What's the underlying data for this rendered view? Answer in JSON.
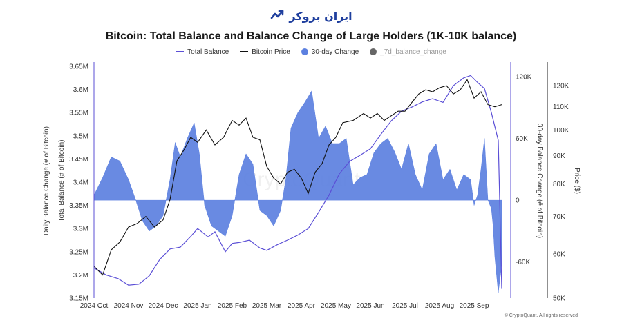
{
  "brand": {
    "name": "ایران بروکر",
    "icon": "trend-chart-icon",
    "color": "#1f3f9e"
  },
  "copyright": "© CryptoQuant. All rights reserved",
  "chart_data": {
    "type": "line",
    "title": "Bitcoin: Total Balance and Balance Change of Large Holders (1K-10K balance)",
    "watermark": "CryptoQuant",
    "legend": [
      {
        "name": "Total Balance",
        "kind": "line",
        "color": "#5b4fd6",
        "hidden": false
      },
      {
        "name": "Bitcoin Price",
        "kind": "line",
        "color": "#111111",
        "hidden": false
      },
      {
        "name": "30-day Change",
        "kind": "dot",
        "color": "#5c80e0",
        "hidden": false
      },
      {
        "name": "_7d_balance_change",
        "kind": "dot",
        "color": "#666666",
        "hidden": true
      }
    ],
    "x_ticks": [
      "2024 Oct",
      "2024 Nov",
      "2024 Dec",
      "2025 Jan",
      "2025 Feb",
      "2025 Mar",
      "2025 Apr",
      "2025 May",
      "2025 Jun",
      "2025 Jul",
      "2025 Aug",
      "2025 Sep"
    ],
    "axes": {
      "balance": {
        "title": "Total Balance (# of Bitcoin)",
        "title2": "Daily Balance Change (# of Bitcoin)",
        "range": [
          3150000,
          3650000
        ],
        "ticks": [
          {
            "v": 3650000,
            "label": "3.65M"
          },
          {
            "v": 3600000,
            "label": "3.6M"
          },
          {
            "v": 3550000,
            "label": "3.55M"
          },
          {
            "v": 3500000,
            "label": "3.5M"
          },
          {
            "v": 3450000,
            "label": "3.45M"
          },
          {
            "v": 3400000,
            "label": "3.4M"
          },
          {
            "v": 3350000,
            "label": "3.35M"
          },
          {
            "v": 3300000,
            "label": "3.3M"
          },
          {
            "v": 3250000,
            "label": "3.25M"
          },
          {
            "v": 3200000,
            "label": "3.2M"
          },
          {
            "v": 3150000,
            "label": "3.15M"
          }
        ]
      },
      "change": {
        "title": "30-day Balance Change (# of Bitcoin)",
        "range": [
          -95000,
          130000
        ],
        "ticks": [
          {
            "v": 120000,
            "label": "120K"
          },
          {
            "v": 60000,
            "label": "60K"
          },
          {
            "v": 0,
            "label": "0"
          },
          {
            "v": -60000,
            "label": "-60K"
          }
        ]
      },
      "price": {
        "title": "Price ($)",
        "scale": "log",
        "range": [
          50000,
          130000
        ],
        "ticks": [
          {
            "v": 120000,
            "label": "120K"
          },
          {
            "v": 110000,
            "label": "110K"
          },
          {
            "v": 100000,
            "label": "100K"
          },
          {
            "v": 90000,
            "label": "90K"
          },
          {
            "v": 80000,
            "label": "80K"
          },
          {
            "v": 70000,
            "label": "70K"
          },
          {
            "v": 60000,
            "label": "60K"
          },
          {
            "v": 50000,
            "label": "50K"
          }
        ]
      }
    },
    "x_domain": [
      0,
      12
    ],
    "series": [
      {
        "name": "Total Balance",
        "axis": "balance",
        "x": [
          0,
          0.35,
          0.7,
          1.0,
          1.3,
          1.6,
          1.9,
          2.2,
          2.5,
          2.8,
          3.0,
          3.3,
          3.5,
          3.8,
          4.0,
          4.2,
          4.5,
          4.8,
          5.0,
          5.3,
          5.6,
          5.9,
          6.2,
          6.5,
          6.8,
          7.1,
          7.4,
          7.7,
          8.0,
          8.3,
          8.6,
          8.9,
          9.2,
          9.5,
          9.8,
          10.1,
          10.4,
          10.7,
          10.9,
          11.1,
          11.3,
          11.5,
          11.7,
          11.8
        ],
        "values": [
          3215000,
          3200000,
          3192000,
          3178000,
          3180000,
          3198000,
          3233000,
          3256000,
          3260000,
          3283000,
          3300000,
          3282000,
          3293000,
          3250000,
          3268000,
          3270000,
          3275000,
          3258000,
          3253000,
          3265000,
          3275000,
          3286000,
          3300000,
          3335000,
          3372000,
          3418000,
          3445000,
          3458000,
          3472000,
          3503000,
          3532000,
          3553000,
          3562000,
          3573000,
          3580000,
          3572000,
          3608000,
          3625000,
          3630000,
          3615000,
          3602000,
          3550000,
          3490000,
          3170000
        ]
      },
      {
        "name": "Bitcoin Price",
        "axis": "price",
        "x": [
          0,
          0.25,
          0.5,
          0.75,
          1.0,
          1.25,
          1.5,
          1.75,
          2.0,
          2.2,
          2.4,
          2.6,
          2.8,
          3.0,
          3.25,
          3.5,
          3.75,
          4.0,
          4.2,
          4.4,
          4.6,
          4.8,
          5.0,
          5.2,
          5.4,
          5.6,
          5.8,
          6.0,
          6.2,
          6.4,
          6.6,
          6.8,
          7.0,
          7.2,
          7.5,
          7.8,
          8.0,
          8.2,
          8.4,
          8.6,
          8.8,
          9.0,
          9.2,
          9.4,
          9.6,
          9.8,
          10.0,
          10.2,
          10.4,
          10.6,
          10.8,
          11.0,
          11.2,
          11.4,
          11.6,
          11.8
        ],
        "values": [
          57000,
          55000,
          61000,
          63000,
          67000,
          68000,
          70000,
          67000,
          69000,
          75000,
          88000,
          92000,
          97000,
          95000,
          100000,
          94000,
          97000,
          104000,
          102000,
          105000,
          97000,
          96000,
          86000,
          82000,
          80000,
          84000,
          85000,
          82000,
          77000,
          84000,
          87000,
          94000,
          97000,
          103000,
          104000,
          107000,
          105000,
          107000,
          104000,
          106000,
          108000,
          108000,
          112000,
          116000,
          118000,
          117000,
          119000,
          120000,
          116000,
          118000,
          123000,
          114000,
          117000,
          111000,
          110000,
          111000
        ]
      },
      {
        "name": "30-day Change",
        "axis": "change",
        "kind": "area",
        "x": [
          0,
          0.25,
          0.5,
          0.75,
          1.0,
          1.2,
          1.4,
          1.6,
          1.8,
          2.0,
          2.2,
          2.35,
          2.5,
          2.7,
          2.9,
          3.05,
          3.2,
          3.4,
          3.6,
          3.8,
          4.0,
          4.2,
          4.4,
          4.6,
          4.8,
          5.0,
          5.2,
          5.4,
          5.55,
          5.7,
          5.9,
          6.1,
          6.3,
          6.5,
          6.7,
          6.9,
          7.1,
          7.3,
          7.5,
          7.7,
          7.9,
          8.1,
          8.3,
          8.5,
          8.7,
          8.9,
          9.1,
          9.3,
          9.5,
          9.7,
          9.9,
          10.1,
          10.3,
          10.5,
          10.7,
          10.9,
          11.0,
          11.1,
          11.2,
          11.3,
          11.4,
          11.5,
          11.55,
          11.6,
          11.7,
          11.8
        ],
        "values": [
          5000,
          22000,
          42000,
          38000,
          20000,
          1000,
          -20000,
          -30000,
          -25000,
          -15000,
          20000,
          56000,
          42000,
          60000,
          75000,
          45000,
          -5000,
          -25000,
          -30000,
          -35000,
          -15000,
          25000,
          45000,
          35000,
          -10000,
          -15000,
          -25000,
          -10000,
          20000,
          70000,
          85000,
          95000,
          106000,
          60000,
          72000,
          55000,
          55000,
          60000,
          15000,
          22000,
          25000,
          46000,
          55000,
          60000,
          47000,
          30000,
          55000,
          25000,
          10000,
          45000,
          55000,
          20000,
          30000,
          10000,
          25000,
          20000,
          -5000,
          5000,
          30000,
          60000,
          0,
          -8000,
          -25000,
          -55000,
          -90000,
          -62000
        ]
      }
    ]
  }
}
